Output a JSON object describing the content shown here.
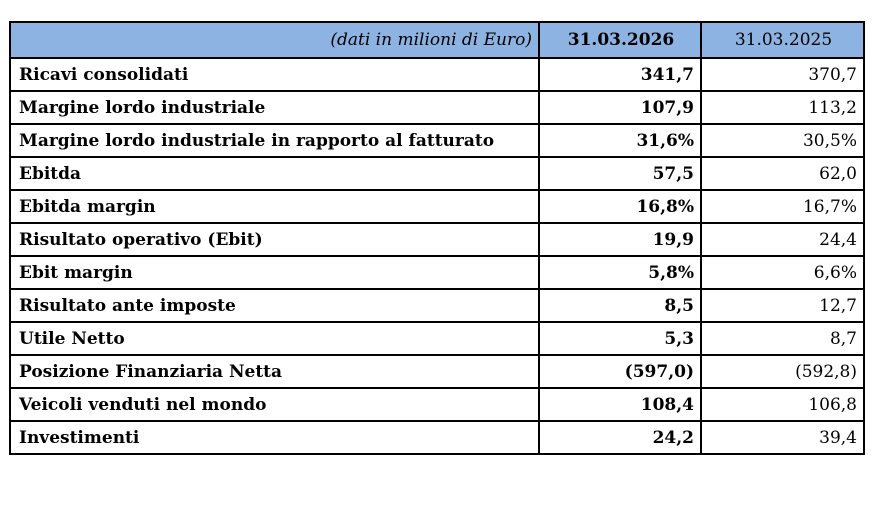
{
  "table": {
    "unit_label": "(dati in milioni di Euro)",
    "columns": [
      "31.03.2026",
      "31.03.2025"
    ],
    "rows": [
      {
        "label": "Ricavi consolidati",
        "current": "341,7",
        "previous": "370,7"
      },
      {
        "label": "Margine lordo industriale",
        "current": "107,9",
        "previous": "113,2"
      },
      {
        "label": "Margine lordo industriale in rapporto al fatturato",
        "current": "31,6%",
        "previous": "30,5%"
      },
      {
        "label": "Ebitda",
        "current": "57,5",
        "previous": "62,0"
      },
      {
        "label": "Ebitda margin",
        "current": "16,8%",
        "previous": "16,7%"
      },
      {
        "label": "Risultato operativo (Ebit)",
        "current": "19,9",
        "previous": "24,4"
      },
      {
        "label": "Ebit margin",
        "current": "5,8%",
        "previous": "6,6%"
      },
      {
        "label": "Risultato ante imposte",
        "current": "8,5",
        "previous": "12,7"
      },
      {
        "label": "Utile Netto",
        "current": "5,3",
        "previous": "8,7"
      },
      {
        "label": "Posizione Finanziaria Netta",
        "current": "(597,0)",
        "previous": "(592,8)"
      },
      {
        "label": "Veicoli venduti nel mondo",
        "current": "108,4",
        "previous": "106,8"
      },
      {
        "label": "Investimenti",
        "current": "24,2",
        "previous": "39,4"
      }
    ]
  },
  "colors": {
    "header_background": "#8db3e2",
    "border": "#000000"
  }
}
